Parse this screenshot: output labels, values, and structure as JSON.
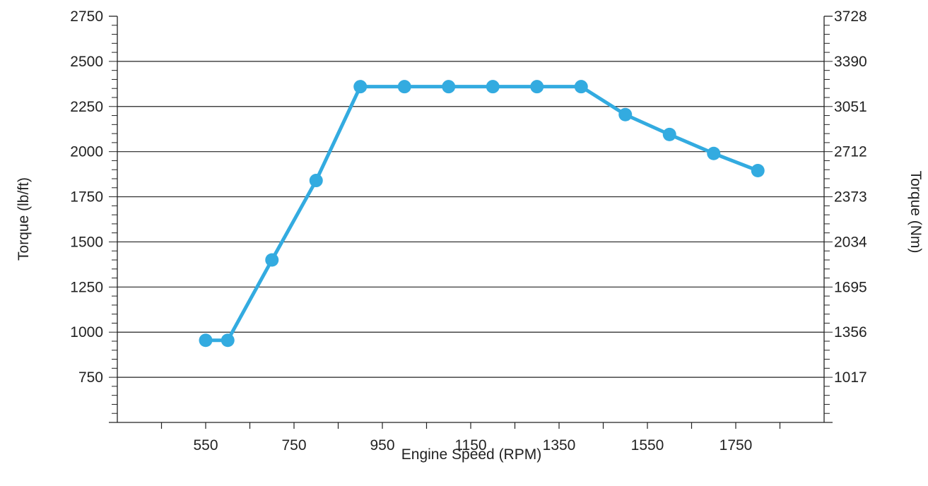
{
  "chart_data": {
    "type": "line",
    "title": "",
    "xlabel": "Engine Speed (RPM)",
    "ylabel": "Torque (lb/ft)",
    "y2label": "Torque (Nm)",
    "xlim": [
      350,
      1950
    ],
    "ylim": [
      500,
      2750
    ],
    "x_ticks": [
      550,
      750,
      950,
      1150,
      1350,
      1550,
      1750
    ],
    "y_ticks": [
      750,
      1000,
      1250,
      1500,
      1750,
      2000,
      2250,
      2500,
      2750
    ],
    "y2_ticks": [
      "1017",
      "1356",
      "1695",
      "2034",
      "2373",
      "2712",
      "3051",
      "3390",
      "3728"
    ],
    "grid": true,
    "series_color": "#33abe0",
    "series": [
      {
        "x": [
          550,
          600,
          700,
          800,
          900,
          1000,
          1100,
          1200,
          1300,
          1400,
          1500,
          1600,
          1700,
          1800
        ],
        "values": [
          955,
          955,
          1400,
          1840,
          2360,
          2360,
          2360,
          2360,
          2360,
          2360,
          2205,
          2095,
          1990,
          1895
        ]
      }
    ]
  }
}
